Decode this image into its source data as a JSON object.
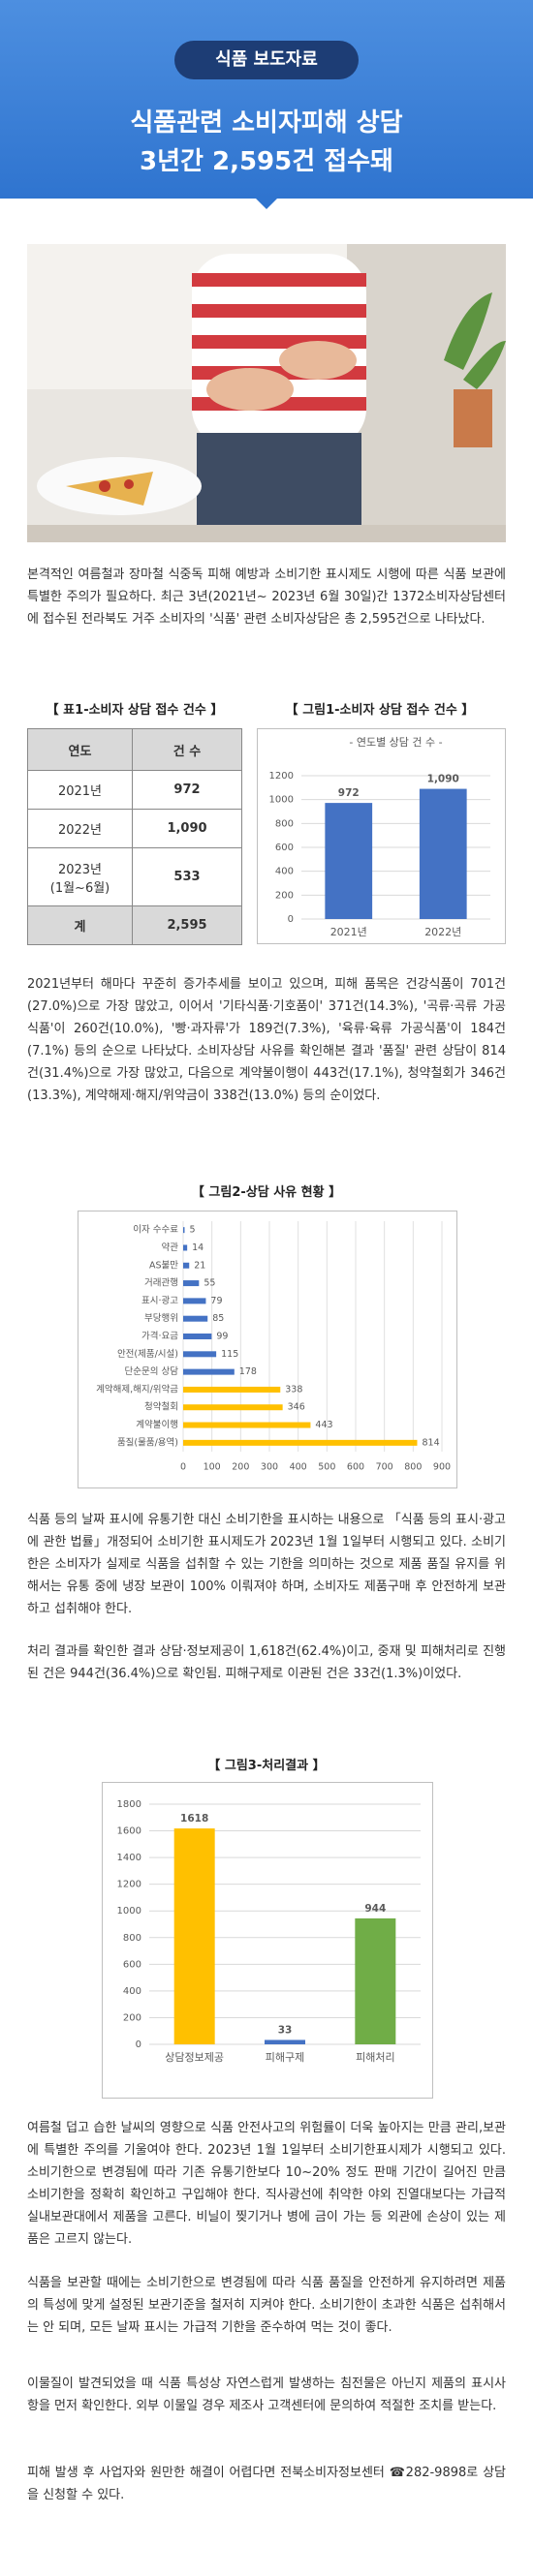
{
  "header": {
    "badge": "식품 보도자료",
    "title_lines": [
      "식품관련 소비자피해 상담",
      "3년간 2,595건 접수돼"
    ]
  },
  "paragraphs": [
    "본격적인 여름철과 장마철 식중독 피해 예방과 소비기한 표시제도 시행에 따른 식품 보관에 특별한 주의가 필요하다. 최근 3년(2021년~ 2023년 6월 30일)간 1372소비자상담센터에 접수된 전라북도 거주 소비자의 '식품' 관련 소비자상담은 총 2,595건으로 나타났다.",
    "2021년부터 해마다 꾸준히 증가추세를 보이고 있으며, 피해 품목은 건강식품이 701건(27.0%)으로 가장 많았고, 이어서 '기타식품·기호품이' 371건(14.3%), '곡류·곡류 가공식품'이 260건(10.0%), '빵·과자류'가 189건(7.3%), '육류·육류 가공식품'이 184건(7.1%) 등의 순으로 나타났다. 소비자상담 사유를 확인해본 결과 '품질' 관련 상담이 814건(31.4%)으로 가장 많았고, 다음으로 계약불이행이 443건(17.1%), 청약철회가 346건(13.3%), 계약해제·해지/위약금이 338건(13.0%) 등의 순이었다.",
    "식품 등의 날짜 표시에 유통기한 대신 소비기한을 표시하는 내용으로 「식품 등의 표시·광고에 관한 법률」개정되어 소비기한 표시제도가 2023년 1월 1일부터 시행되고 있다. 소비기한은 소비자가 실제로 식품을 섭취할 수 있는 기한을 의미하는 것으로 제품 품질 유지를 위해서는 유통 중에 냉장 보관이 100% 이뤄져야 하며, 소비자도 제품구매 후 안전하게 보관하고 섭취해야 한다.",
    "처리 결과를 확인한 결과 상담·정보제공이 1,618건(62.4%)이고, 중재 및 피해처리로 진행된 건은 944건(36.4%)으로 확인됨. 피해구제로 이관된 건은 33건(1.3%)이었다.",
    "여름철 덥고 습한 날씨의 영향으로 식품 안전사고의 위험률이 더욱 높아지는 만큼 관리,보관에 특별한 주의를 기울여야 한다. 2023년 1월 1일부터 소비기한표시제가 시행되고 있다. 소비기한으로 변경됨에 따라 기존 유통기한보다 10~20% 정도 판매 기간이 길어진 만큼 소비기한을 정확히 확인하고 구입해야 한다. 직사광선에 취약한 야외 진열대보다는 가급적 실내보관대에서 제품을 고른다. 비닐이 찢기거나 병에 금이 가는 등 외관에 손상이 있는 제품은 고르지 않는다.",
    "식품을 보관할 때에는 소비기한으로 변경됨에 따라 식품 품질을 안전하게 유지하려면 제품의 특성에 맞게 설정된 보관기준을 철저히 지켜야 한다. 소비기한이 초과한 식품은 섭취해서는 안 되며, 모든 날짜 표시는 가급적 기한을 준수하여 먹는 것이 좋다.",
    "이물질이 발견되었을 때 식품 특성상 자연스럽게 발생하는 침전물은 아닌지 제품의 표시사항을 먼저 확인한다. 외부 이물일 경우 제조사 고객센터에 문의하여 적절한 조치를 받는다.",
    "피해 발생 후 사업자와 원만한 해결이 어렵다면 전북소비자정보센터 ☎282-9898로 상담을 신청할 수 있다."
  ],
  "table": {
    "caption": "【 표1-소비자 상담 접수 건수 】",
    "columns": [
      "연도",
      "건 수"
    ],
    "rows": [
      [
        "2021년",
        "972"
      ],
      [
        "2022년",
        "1,090"
      ],
      [
        "2023년\n(1월~6월)",
        "533"
      ],
      [
        "계",
        "2,595"
      ]
    ]
  },
  "chart_data": [
    {
      "type": "bar",
      "caption": "【 그림1-소비자 상담 접수 건수 】",
      "title": "- 연도별 상담 건 수 -",
      "categories": [
        "2021년",
        "2022년"
      ],
      "values": [
        972,
        1090
      ],
      "value_labels": [
        "972",
        "1,090"
      ],
      "color": "#4472c4",
      "ylim": [
        0,
        1200
      ],
      "yticks": [
        0,
        200,
        400,
        600,
        800,
        1000,
        1200
      ],
      "grid": true
    },
    {
      "type": "barh",
      "title": "【 그림2-상담 사유 현황 】",
      "categories": [
        "이자 수수료",
        "약관",
        "AS불만",
        "거래관행",
        "표시·광고",
        "부당행위",
        "가격·요금",
        "안전(제품/시설)",
        "단순문의 상담",
        "계약해제,해지/위약금",
        "청약철회",
        "계약불이행",
        "품질(물품/용역)"
      ],
      "values": [
        5,
        14,
        21,
        55,
        79,
        85,
        99,
        115,
        178,
        338,
        346,
        443,
        814
      ],
      "colors": [
        "#4472c4",
        "#4472c4",
        "#4472c4",
        "#4472c4",
        "#4472c4",
        "#4472c4",
        "#4472c4",
        "#4472c4",
        "#4472c4",
        "#ffc000",
        "#ffc000",
        "#ffc000",
        "#ffc000"
      ],
      "xlim": [
        0,
        900
      ],
      "xticks": [
        0,
        100,
        200,
        300,
        400,
        500,
        600,
        700,
        800,
        900
      ],
      "grid": true
    },
    {
      "type": "bar",
      "title": "【 그림3-처리결과 】",
      "categories": [
        "상담정보제공",
        "피해구제",
        "피해처리"
      ],
      "values": [
        1618,
        33,
        944
      ],
      "colors": [
        "#ffc000",
        "#4472c4",
        "#70ad47"
      ],
      "ylim": [
        0,
        1800
      ],
      "yticks": [
        0,
        200,
        400,
        600,
        800,
        1000,
        1200,
        1400,
        1600,
        1800
      ],
      "grid": true
    }
  ]
}
